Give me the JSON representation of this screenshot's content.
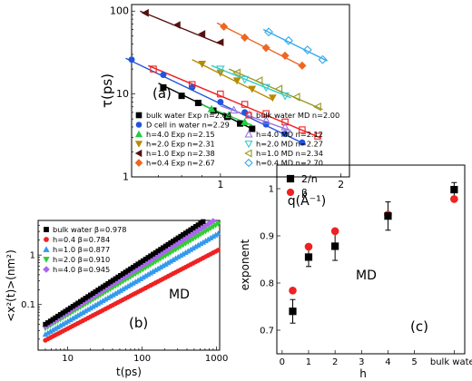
{
  "chart_data": [
    {
      "type": "scatter",
      "panel": "(a)",
      "xlabel": "q(Å⁻¹)",
      "ylabel": "τ(ps)",
      "xscale": "log",
      "yscale": "log",
      "xlim": [
        0.6,
        2.1
      ],
      "ylim": [
        1,
        120
      ],
      "xticks": [
        1,
        2
      ],
      "yticks": [
        1,
        10,
        100
      ],
      "xtick_labels": [
        "1",
        "2"
      ],
      "ytick_labels": [
        "1",
        "10",
        "100"
      ],
      "legend_position": "bottom",
      "series": [
        {
          "name": "bulk water Exp n=2.04",
          "color": "#000000",
          "marker": "square",
          "x": [
            0.72,
            0.8,
            0.88,
            0.96,
            1.04,
            1.12,
            1.2
          ],
          "y": [
            12,
            9.5,
            7.8,
            6.3,
            5.3,
            4.4,
            3.8
          ],
          "fit": [
            [
              0.7,
              13.5
            ],
            [
              1.2,
              3.8
            ]
          ]
        },
        {
          "name": "D cell in water n=2.29",
          "color": "#2255dd",
          "marker": "circle",
          "x": [
            0.6,
            0.72,
            0.85,
            1.0,
            1.15,
            1.3,
            1.45,
            1.6
          ],
          "y": [
            26,
            17,
            12,
            8,
            6,
            4.3,
            3.3,
            2.6
          ],
          "fit": [
            [
              0.58,
              27
            ],
            [
              1.62,
              2.5
            ]
          ]
        },
        {
          "name": "h=4.0 Exp n=2.15",
          "color": "#22cc44",
          "marker": "triangle-up",
          "x": [
            0.95,
            1.05,
            1.15
          ],
          "y": [
            6.6,
            5.6,
            4.6
          ],
          "fit": [
            [
              0.9,
              7.4
            ],
            [
              1.2,
              4.2
            ]
          ]
        },
        {
          "name": "h=2.0 Exp n=2.31",
          "color": "#b88a00",
          "marker": "triangle-down",
          "x": [
            0.9,
            1.0,
            1.1,
            1.2,
            1.35
          ],
          "y": [
            23,
            18,
            14.5,
            11.5,
            9
          ],
          "fit": [
            [
              0.85,
              26
            ],
            [
              1.35,
              8.5
            ]
          ]
        },
        {
          "name": "h=1.0 Exp n=2.38",
          "color": "#551111",
          "marker": "triangle-left",
          "x": [
            0.65,
            0.78,
            0.9,
            1.0
          ],
          "y": [
            95,
            68,
            53,
            42
          ],
          "fit": [
            [
              0.63,
              100
            ],
            [
              1.0,
              40
            ]
          ]
        },
        {
          "name": "h=0.4 Exp n=2.67",
          "color": "#ee6622",
          "marker": "diamond",
          "x": [
            1.02,
            1.15,
            1.3,
            1.45,
            1.6
          ],
          "y": [
            65,
            48,
            36,
            29,
            22
          ],
          "fit": [
            [
              0.98,
              72
            ],
            [
              1.62,
              21
            ]
          ]
        },
        {
          "name": "bulk water MD n=2.00",
          "color": "#ee2222",
          "marker": "square-open",
          "x": [
            0.68,
            0.85,
            1.0,
            1.15,
            1.3,
            1.45,
            1.6,
            1.75
          ],
          "y": [
            20,
            13,
            10,
            7.5,
            5.8,
            4.6,
            3.7,
            3.1
          ],
          "fit": [
            [
              0.66,
              22
            ],
            [
              1.78,
              2.95
            ]
          ]
        },
        {
          "name": "h=4.0 MD n=2.12",
          "color": "#9977dd",
          "marker": "triangle-up-open",
          "x": [
            1.08,
            1.18,
            1.3,
            1.45
          ],
          "y": [
            6.4,
            5.6,
            4.8,
            4.0
          ],
          "fit": [
            [
              1.0,
              7.2
            ],
            [
              1.5,
              3.6
            ]
          ]
        },
        {
          "name": "h=2.0 MD n=2.27",
          "color": "#33cccc",
          "marker": "triangle-down-open",
          "x": [
            1.0,
            1.15,
            1.3,
            1.45
          ],
          "y": [
            20,
            15,
            12,
            9.5
          ],
          "fit": [
            [
              0.95,
              22
            ],
            [
              1.5,
              9
            ]
          ]
        },
        {
          "name": "h=1.0 MD n=2.34",
          "color": "#999922",
          "marker": "triangle-left-open",
          "x": [
            1.1,
            1.25,
            1.4,
            1.55,
            1.75
          ],
          "y": [
            18,
            14.5,
            11.5,
            9.2,
            7
          ],
          "fit": [
            [
              1.05,
              20
            ],
            [
              1.8,
              6.5
            ]
          ]
        },
        {
          "name": "h=0.4 MD n=2.70",
          "color": "#33aaee",
          "marker": "diamond-open",
          "x": [
            1.32,
            1.48,
            1.65,
            1.8
          ],
          "y": [
            56,
            44,
            34,
            26
          ],
          "fit": [
            [
              1.28,
              60
            ],
            [
              1.85,
              25
            ]
          ]
        }
      ]
    },
    {
      "type": "scatter",
      "panel": "(b)",
      "annotation": "MD",
      "xlabel": "t(ps)",
      "ylabel": "<x²(t)>(nm²)",
      "xscale": "log",
      "yscale": "log",
      "xlim": [
        4,
        1100
      ],
      "ylim": [
        0.012,
        5
      ],
      "xticks": [
        10,
        100,
        1000
      ],
      "yticks": [
        0.1,
        1
      ],
      "xtick_labels": [
        "10",
        "100",
        "1000"
      ],
      "ytick_labels": [
        "0.1",
        "1"
      ],
      "legend_position": "top-left",
      "series": [
        {
          "name": "bulk water β=0.978",
          "color": "#000000",
          "marker": "square",
          "x0": 5,
          "y0": 0.04,
          "beta": 0.978
        },
        {
          "name": "h=0.4 β=0.784",
          "color": "#ee2222",
          "marker": "circle",
          "x0": 5,
          "y0": 0.019,
          "beta": 0.784
        },
        {
          "name": "h=1.0 β=0.877",
          "color": "#3399ee",
          "marker": "triangle-up",
          "x0": 5,
          "y0": 0.025,
          "beta": 0.877
        },
        {
          "name": "h=2.0 β=0.910",
          "color": "#33cc33",
          "marker": "triangle-down",
          "x0": 5,
          "y0": 0.033,
          "beta": 0.91
        },
        {
          "name": "h=4.0 β=0.945",
          "color": "#aa66ee",
          "marker": "diamond",
          "x0": 5,
          "y0": 0.036,
          "beta": 0.945
        }
      ]
    },
    {
      "type": "scatter",
      "panel": "(c)",
      "annotation": "MD",
      "xlabel": "h",
      "ylabel": "exponent",
      "xlim": [
        -0.2,
        6.9
      ],
      "ylim": [
        0.65,
        1.05
      ],
      "xticks": [
        0,
        1,
        2,
        3,
        4,
        5,
        6.5
      ],
      "yticks": [
        0.7,
        0.8,
        0.9,
        1.0
      ],
      "xtick_labels": [
        "0",
        "1",
        "2",
        "3",
        "4",
        "5",
        "bulk water"
      ],
      "ytick_labels": [
        "0.7",
        "0.8",
        "0.9",
        "1"
      ],
      "legend_position": "top-left",
      "series": [
        {
          "name": "2/n",
          "color": "#000000",
          "marker": "square",
          "x": [
            0.4,
            1.0,
            2.0,
            4.0,
            6.5
          ],
          "y": [
            0.74,
            0.855,
            0.878,
            0.942,
            0.998
          ],
          "err": [
            0.025,
            0.02,
            0.03,
            0.03,
            0.015
          ]
        },
        {
          "name": "β",
          "color": "#ee2222",
          "marker": "circle",
          "x": [
            0.4,
            1.0,
            2.0,
            4.0,
            6.5
          ],
          "y": [
            0.784,
            0.877,
            0.91,
            0.945,
            0.978
          ]
        }
      ]
    }
  ]
}
